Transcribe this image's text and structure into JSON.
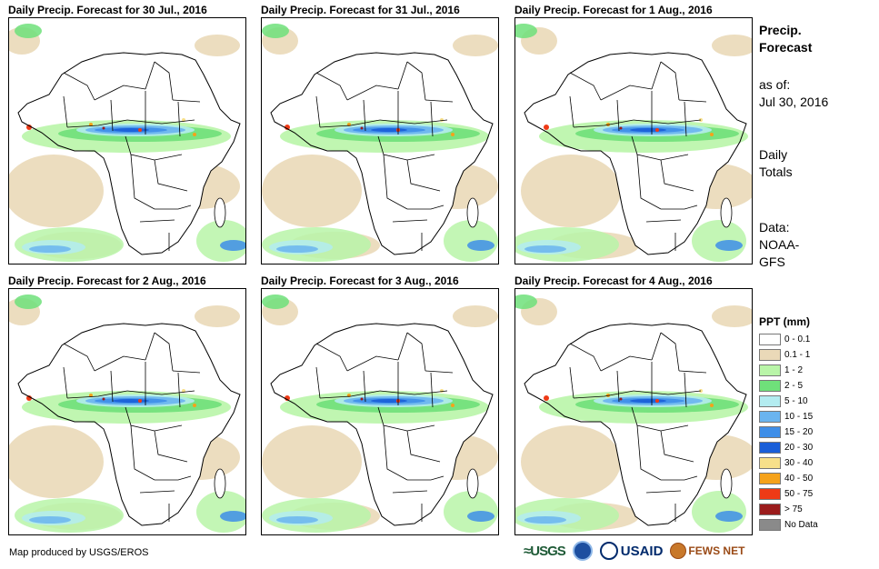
{
  "panels": [
    {
      "title": "Daily Precip. Forecast for 30 Jul., 2016"
    },
    {
      "title": "Daily Precip. Forecast for 31 Jul., 2016"
    },
    {
      "title": "Daily Precip. Forecast for 1 Aug., 2016"
    },
    {
      "title": "Daily Precip. Forecast for 2 Aug., 2016"
    },
    {
      "title": "Daily Precip. Forecast for 3 Aug., 2016"
    },
    {
      "title": "Daily Precip. Forecast for 4 Aug., 2016"
    }
  ],
  "sidebar": {
    "title_line1": "Precip.",
    "title_line2": "Forecast",
    "asof_label": "as of:",
    "asof_date": "Jul 30, 2016",
    "totals_line1": "Daily",
    "totals_line2": "Totals",
    "data_line1": "Data:",
    "data_line2": "NOAA-",
    "data_line3": "GFS"
  },
  "legend": {
    "title": "PPT (mm)",
    "items": [
      {
        "label": "0 - 0.1",
        "color": "#ffffff"
      },
      {
        "label": "0.1 - 1",
        "color": "#ead9b8"
      },
      {
        "label": "1 - 2",
        "color": "#b9f5a8"
      },
      {
        "label": "2 - 5",
        "color": "#6fe07a"
      },
      {
        "label": "5 - 10",
        "color": "#b3ecf0"
      },
      {
        "label": "10 - 15",
        "color": "#6ab4ef"
      },
      {
        "label": "15 - 20",
        "color": "#3e8ee8"
      },
      {
        "label": "20 - 30",
        "color": "#1a5ed8"
      },
      {
        "label": "30 - 40",
        "color": "#f7e08a"
      },
      {
        "label": "40 - 50",
        "color": "#f5a21a"
      },
      {
        "label": "50 - 75",
        "color": "#ee3a16"
      },
      {
        "label": "> 75",
        "color": "#9b1c1c"
      },
      {
        "label": "No Data",
        "color": "#8a8a8a"
      }
    ]
  },
  "footer": {
    "credit": "Map produced by USGS/EROS",
    "logo_usgs": "≈USGS",
    "logo_usaid": "USAID",
    "logo_fews": "FEWS NET"
  }
}
